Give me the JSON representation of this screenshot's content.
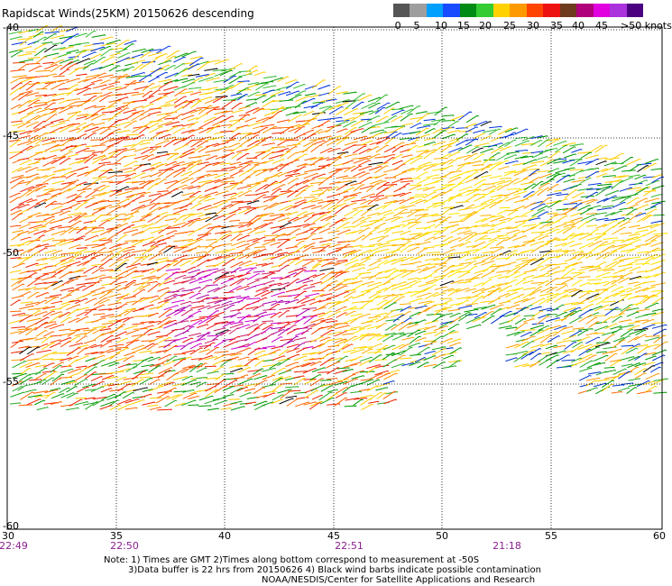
{
  "title": "Rapidscat Winds(25KM) 20150626 descending",
  "legend": {
    "colors": [
      "#555555",
      "#9e9e9e",
      "#00a0ff",
      "#1a4cff",
      "#008c14",
      "#33cc33",
      "#ffd200",
      "#ff9900",
      "#ff4400",
      "#ee1111",
      "#6e3b1e",
      "#b0007a",
      "#e000e0",
      "#aa33dd",
      "#4b0082"
    ],
    "labels": [
      "0",
      "5",
      "10",
      "15",
      "20",
      "25",
      "30",
      "35",
      "40",
      "45",
      ">50 knots"
    ]
  },
  "axes": {
    "lat_labels": [
      "-40",
      "-45",
      "-50",
      "-55",
      "-60"
    ],
    "lon_labels": [
      "30",
      "35",
      "40",
      "45",
      "50",
      "55",
      "60"
    ],
    "times": [
      "22:49",
      "22:50",
      "22:51",
      "21:18"
    ]
  },
  "notes": {
    "line1": "Note: 1) Times are GMT 2)Times along bottom correspond to measurement at -50S",
    "line2": "3)Data buffer is 22 hrs from 20150626 4) Black wind barbs indicate possible contamination",
    "line3": "NOAA/NESDIS/Center for Satellite Applications and Research"
  },
  "map_extent": {
    "lon": [
      30,
      60
    ],
    "lat": [
      -40,
      -60
    ]
  },
  "swath_colors": {
    "north_strip": [
      "#009900",
      "#33bb33",
      "#0033dd",
      "#ffcc00"
    ],
    "main": [
      "#ff6a00",
      "#ff9900",
      "#ffcc00",
      "#ee2200",
      "#ff4400"
    ],
    "calm": [
      "#ffe300",
      "#ffd000",
      "#ffb000"
    ],
    "east": [
      "#009900",
      "#22aa22",
      "#0033cc",
      "#ffcc00",
      "#ff9900"
    ],
    "high": [
      "#aa00aa",
      "#cc00cc",
      "#ee1111",
      "#cc2266"
    ],
    "south": [
      "#22aa22",
      "#009900",
      "#ffcc00",
      "#ff6600",
      "#ee2200"
    ]
  },
  "map_marks": {
    "contaminated_color": "#000000"
  }
}
